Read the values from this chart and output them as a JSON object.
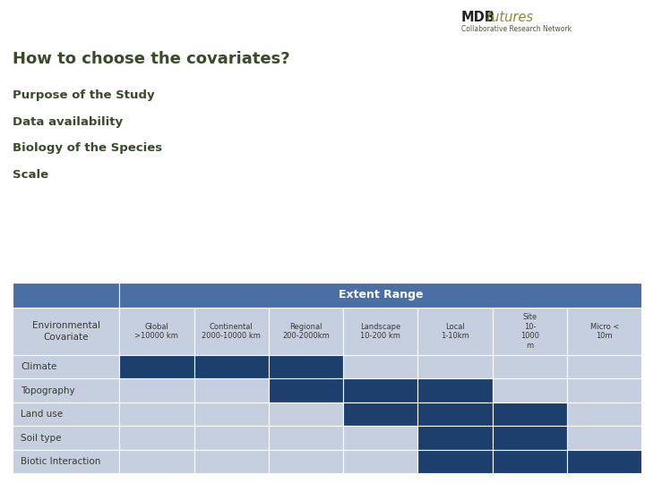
{
  "title_main": "How to choose the covariates?",
  "bullet_points": [
    "Purpose of the Study",
    "Data availability",
    "Biology of the Species",
    "Scale"
  ],
  "logo_mdb": "MDB",
  "logo_futures": "futures",
  "logo_sub": "Collaborative Research Network",
  "table_header_right": "Extent Range",
  "col_headers": [
    [
      "Global",
      ">10000 km"
    ],
    [
      "Continental",
      "2000-10000 km"
    ],
    [
      "Regional",
      "200-2000km"
    ],
    [
      "Landscape",
      "10-200 km"
    ],
    [
      "Local",
      "1-10km"
    ],
    [
      "Site",
      "10-\n1000\nm"
    ],
    [
      "Micro <",
      "10m"
    ]
  ],
  "dark_blue": "#1c3f6e",
  "light_blue": "#c5cfe0",
  "header_blue": "#4a6fa5",
  "bg_color": "#ffffff",
  "text_dark": "#3a3a2a",
  "title_color": "#3a4a2a",
  "cell_data": {
    "Climate": [
      1,
      1,
      1,
      0,
      0,
      0,
      0
    ],
    "Topography": [
      0,
      0,
      1,
      1,
      1,
      0,
      0
    ],
    "Land use": [
      0,
      0,
      0,
      1,
      1,
      1,
      0
    ],
    "Soil type": [
      0,
      0,
      0,
      0,
      1,
      1,
      0
    ],
    "Biotic Interaction": [
      0,
      0,
      0,
      0,
      1,
      1,
      1
    ]
  },
  "row_names": [
    "Climate",
    "Topography",
    "Land use",
    "Soil type",
    "Biotic Interaction"
  ]
}
